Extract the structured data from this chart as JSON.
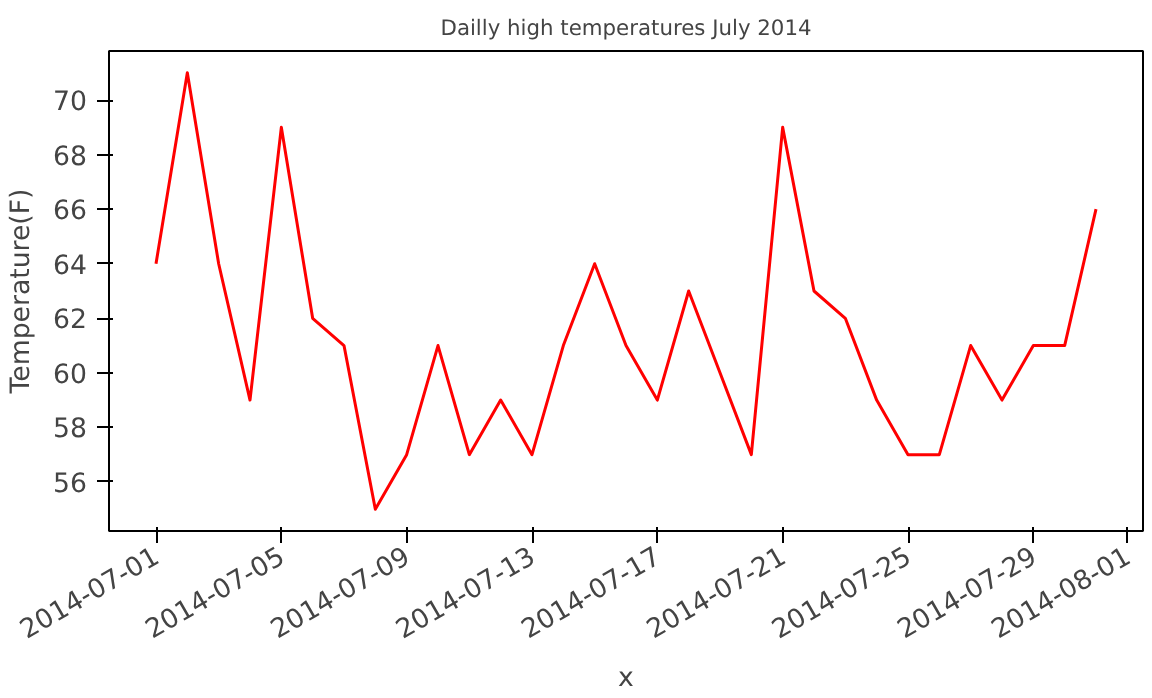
{
  "chart_data": {
    "type": "line",
    "title": "Dailly high temperatures July 2014",
    "xlabel": "x",
    "ylabel": "Temperature(F)",
    "x": [
      "2014-07-01",
      "2014-07-02",
      "2014-07-03",
      "2014-07-04",
      "2014-07-05",
      "2014-07-06",
      "2014-07-07",
      "2014-07-08",
      "2014-07-09",
      "2014-07-10",
      "2014-07-11",
      "2014-07-12",
      "2014-07-13",
      "2014-07-14",
      "2014-07-15",
      "2014-07-16",
      "2014-07-17",
      "2014-07-18",
      "2014-07-19",
      "2014-07-20",
      "2014-07-21",
      "2014-07-22",
      "2014-07-23",
      "2014-07-24",
      "2014-07-25",
      "2014-07-26",
      "2014-07-27",
      "2014-07-28",
      "2014-07-29",
      "2014-07-30",
      "2014-07-31"
    ],
    "series": [
      {
        "color": "#ff0000",
        "values": [
          64,
          71,
          64,
          59,
          69,
          62,
          61,
          55,
          57,
          61,
          57,
          59,
          57,
          61,
          64,
          61,
          59,
          63,
          60,
          57,
          69,
          63,
          62,
          59,
          57,
          57,
          61,
          59,
          61,
          61,
          66
        ]
      }
    ],
    "xlim": [
      "2014-06-29T12:00",
      "2014-08-01T12:00"
    ],
    "xticks": [
      "2014-07-01",
      "2014-07-05",
      "2014-07-09",
      "2014-07-13",
      "2014-07-17",
      "2014-07-21",
      "2014-07-25",
      "2014-07-29",
      "2014-08-01"
    ],
    "ylim": [
      54.2,
      71.8
    ],
    "yticks": [
      56,
      58,
      60,
      62,
      64,
      66,
      68,
      70
    ],
    "grid": false,
    "line_style": "solid"
  }
}
